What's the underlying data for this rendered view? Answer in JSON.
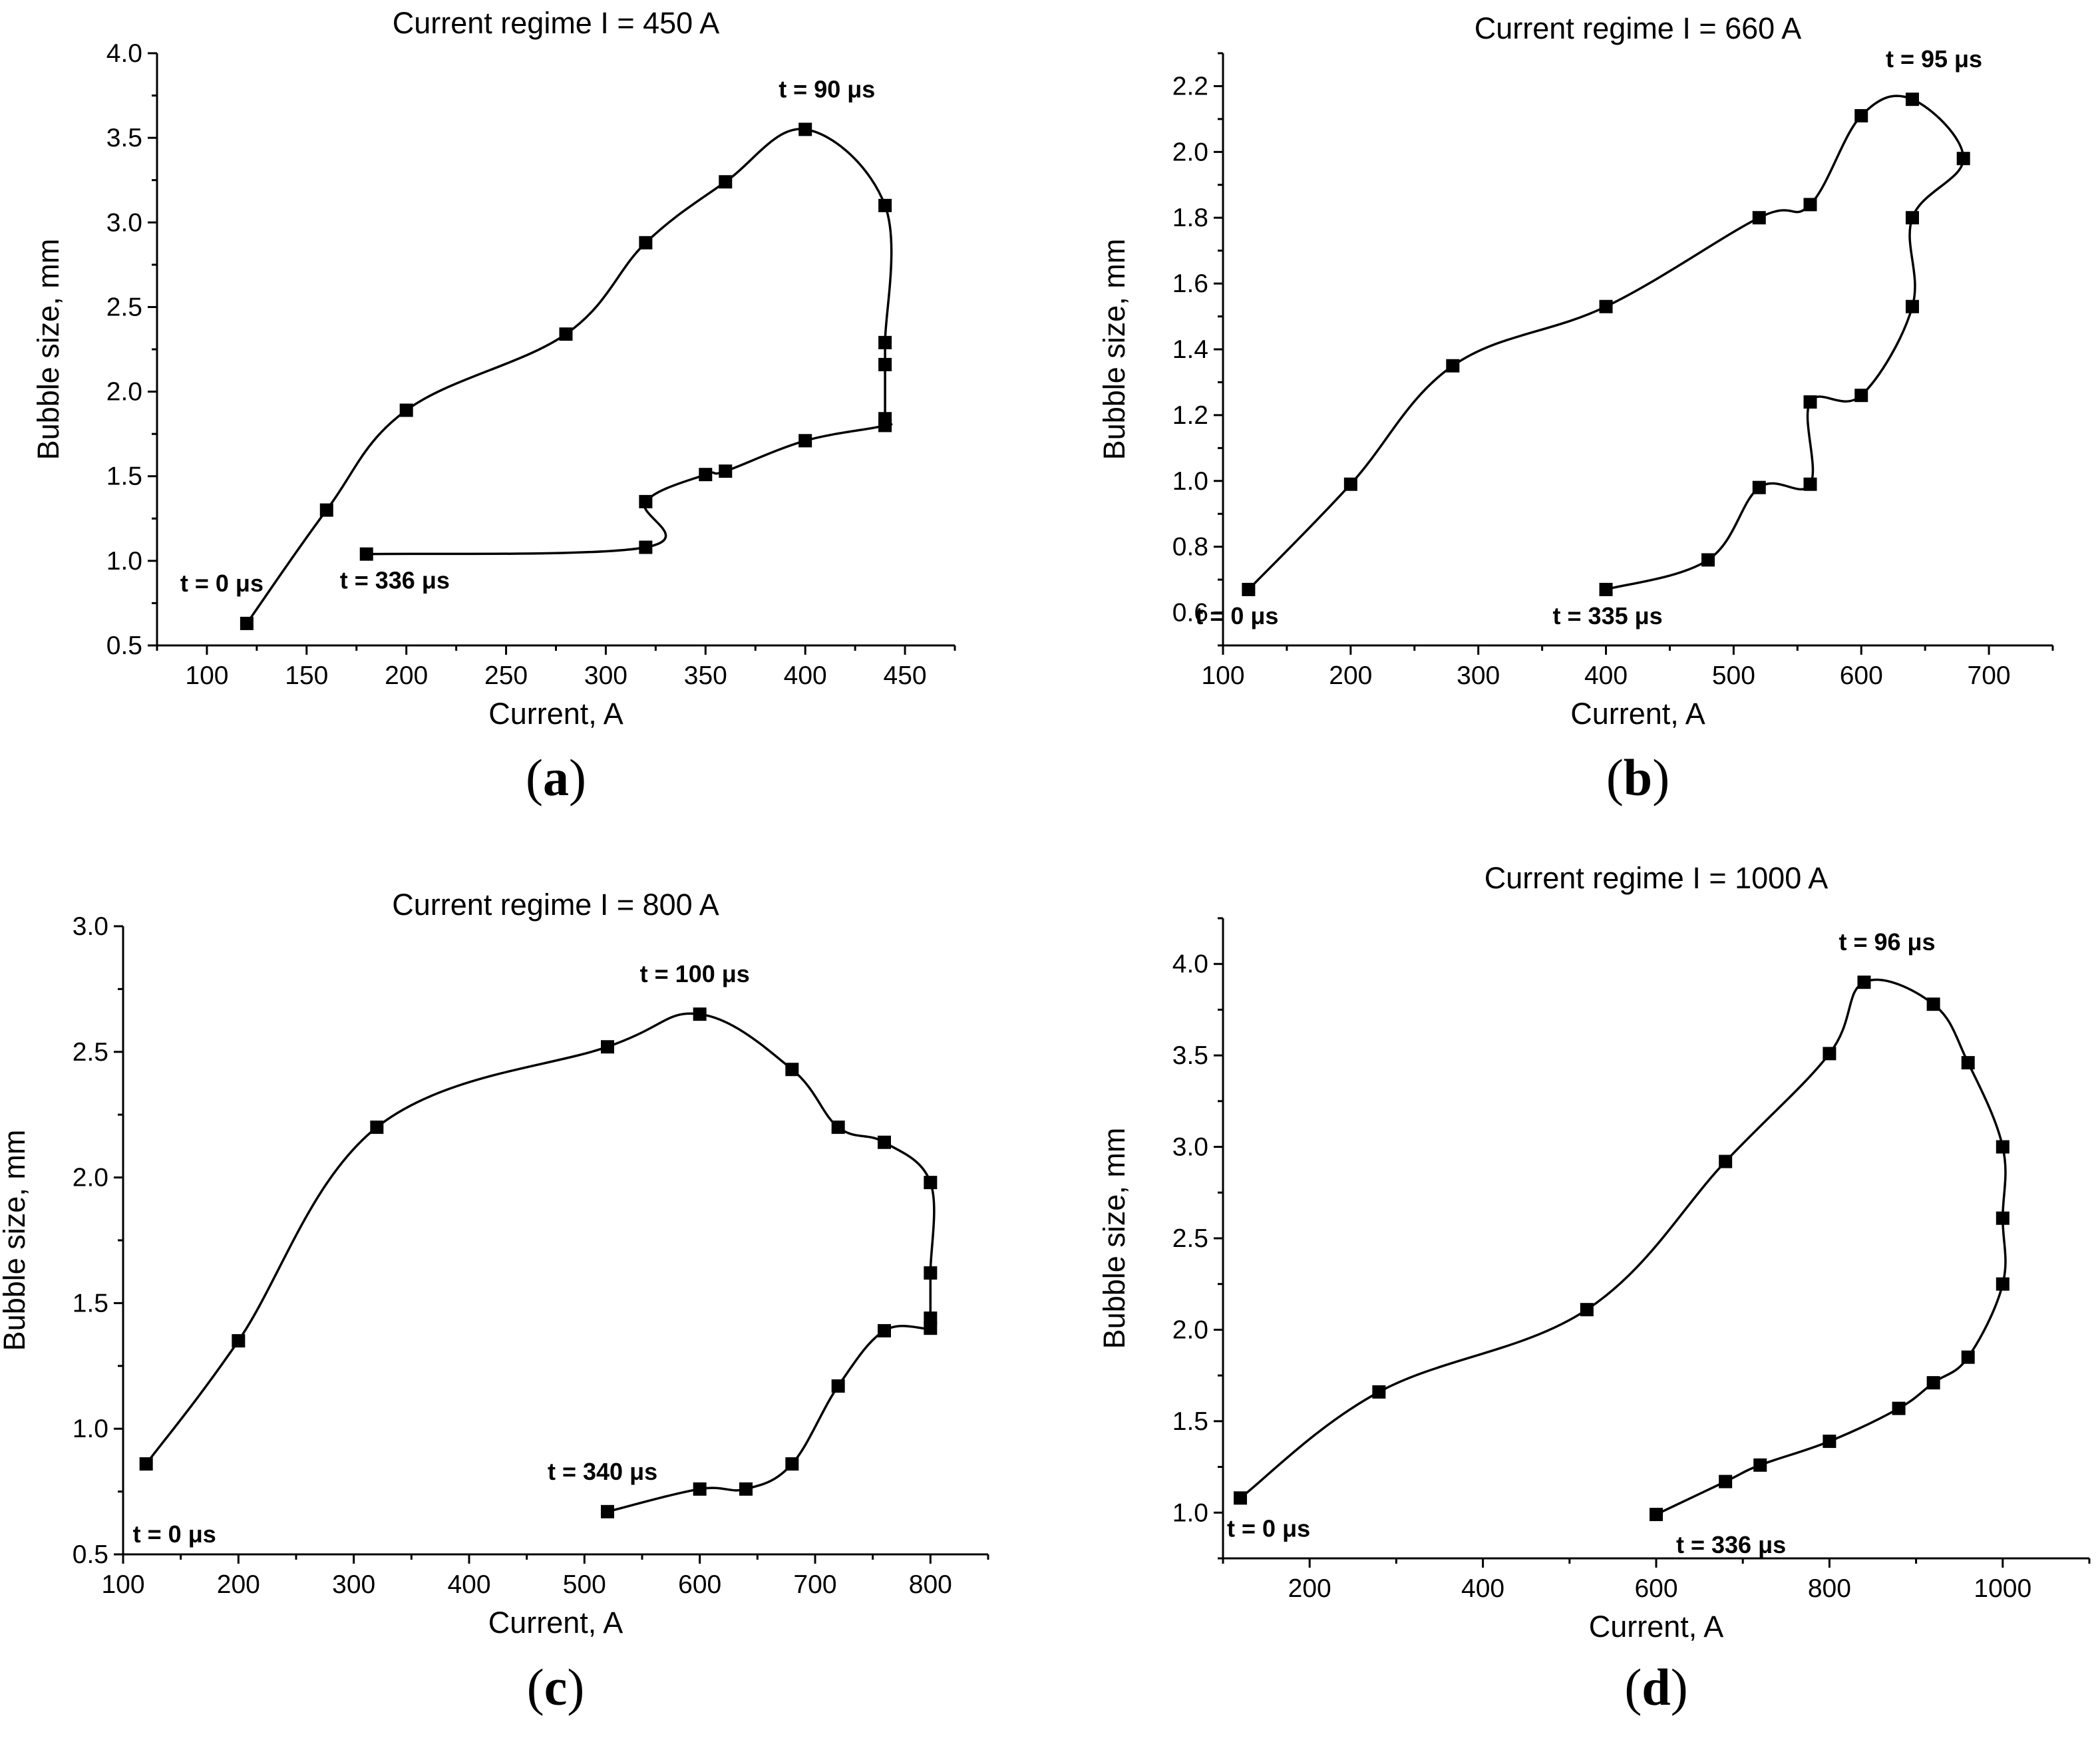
{
  "chart_data": [
    {
      "type": "line",
      "panel_label": "a",
      "title": "Current regime I = 450 A",
      "xlabel": "Current, A",
      "ylabel": "Bubble size, mm",
      "xlim": [
        75,
        475
      ],
      "ylim": [
        0.5,
        4.0
      ],
      "xticks": [
        100,
        150,
        200,
        250,
        300,
        350,
        400,
        450
      ],
      "yticks": [
        0.5,
        1.0,
        1.5,
        2.0,
        2.5,
        3.0,
        3.5,
        4.0
      ],
      "xtick_labels": [
        "100",
        "150",
        "200",
        "250",
        "300",
        "350",
        "400",
        "450"
      ],
      "ytick_labels": [
        "0.5",
        "1.0",
        "1.5",
        "2.0",
        "2.5",
        "3.0",
        "3.5",
        "4.0"
      ],
      "grid": false,
      "series": [
        {
          "name": "bubble size",
          "x": [
            120,
            160,
            200,
            280,
            320,
            360,
            400,
            440,
            440,
            440,
            440,
            440,
            400,
            360,
            350,
            320,
            320,
            180
          ],
          "y": [
            0.63,
            1.3,
            1.89,
            2.34,
            2.88,
            3.24,
            3.55,
            3.1,
            2.29,
            2.16,
            1.84,
            1.8,
            1.71,
            1.53,
            1.51,
            1.35,
            1.08,
            1.04
          ]
        }
      ],
      "annotations": [
        {
          "text": "t = 0 μs",
          "x": 120,
          "y": 0.63
        },
        {
          "text": "t = 90 μs",
          "x": 400,
          "y": 3.55
        },
        {
          "text": "t = 336 μs",
          "x": 180,
          "y": 1.04
        }
      ]
    },
    {
      "type": "line",
      "panel_label": "b",
      "title": "Current regime I = 660 A",
      "xlabel": "Current, A",
      "ylabel": "Bubble size, mm",
      "xlim": [
        100,
        750
      ],
      "ylim": [
        0.5,
        2.3
      ],
      "xticks": [
        100,
        200,
        300,
        400,
        500,
        600,
        700
      ],
      "yticks": [
        0.6,
        0.8,
        1.0,
        1.2,
        1.4,
        1.6,
        1.8,
        2.0,
        2.2
      ],
      "xtick_labels": [
        "100",
        "200",
        "300",
        "400",
        "500",
        "600",
        "700"
      ],
      "ytick_labels": [
        "0.6",
        "0.8",
        "1.0",
        "1.2",
        "1.4",
        "1.6",
        "1.8",
        "2.0",
        "2.2"
      ],
      "grid": false,
      "series": [
        {
          "name": "bubble size",
          "x": [
            120,
            200,
            280,
            400,
            520,
            560,
            600,
            640,
            680,
            640,
            640,
            600,
            560,
            560,
            520,
            480,
            400
          ],
          "y": [
            0.67,
            0.99,
            1.35,
            1.53,
            1.8,
            1.84,
            2.11,
            2.16,
            1.98,
            1.8,
            1.53,
            1.26,
            1.24,
            0.99,
            0.98,
            0.76,
            0.67
          ]
        }
      ],
      "annotations": [
        {
          "text": "t = 0 μs",
          "x": 120,
          "y": 0.67
        },
        {
          "text": "t = 95 μs",
          "x": 640,
          "y": 2.16
        },
        {
          "text": "t = 335 μs",
          "x": 400,
          "y": 0.67
        }
      ]
    },
    {
      "type": "line",
      "panel_label": "c",
      "title": "Current regime I = 800 A",
      "xlabel": "Current, A",
      "ylabel": "Bubble size, mm",
      "xlim": [
        100,
        850
      ],
      "ylim": [
        0.5,
        3.0
      ],
      "xticks": [
        100,
        200,
        300,
        400,
        500,
        600,
        700,
        800
      ],
      "yticks": [
        0.5,
        1.0,
        1.5,
        2.0,
        2.5,
        3.0
      ],
      "xtick_labels": [
        "100",
        "200",
        "300",
        "400",
        "500",
        "600",
        "700",
        "800"
      ],
      "ytick_labels": [
        "0.5",
        "1.0",
        "1.5",
        "2.0",
        "2.5",
        "3.0"
      ],
      "grid": false,
      "series": [
        {
          "name": "bubble size",
          "x": [
            120,
            200,
            320,
            520,
            600,
            680,
            720,
            760,
            800,
            800,
            800,
            800,
            760,
            720,
            680,
            640,
            600,
            520
          ],
          "y": [
            0.86,
            1.35,
            2.2,
            2.52,
            2.65,
            2.43,
            2.2,
            2.14,
            1.98,
            1.62,
            1.44,
            1.4,
            1.39,
            1.17,
            0.86,
            0.76,
            0.76,
            0.67
          ]
        }
      ],
      "annotations": [
        {
          "text": "t = 0 μs",
          "x": 120,
          "y": 0.86
        },
        {
          "text": "t = 100 μs",
          "x": 600,
          "y": 2.65
        },
        {
          "text": "t = 340 μs",
          "x": 520,
          "y": 0.67
        }
      ]
    },
    {
      "type": "line",
      "panel_label": "d",
      "title": "Current regime I = 1000 A",
      "xlabel": "Current, A",
      "ylabel": "Bubble size, mm",
      "xlim": [
        100,
        1100
      ],
      "ylim": [
        0.75,
        4.25
      ],
      "xticks": [
        200,
        400,
        600,
        800,
        1000
      ],
      "yticks": [
        1.0,
        1.5,
        2.0,
        2.5,
        3.0,
        3.5,
        4.0
      ],
      "xtick_labels": [
        "200",
        "400",
        "600",
        "800",
        "1000"
      ],
      "ytick_labels": [
        "1.0",
        "1.5",
        "2.0",
        "2.5",
        "3.0",
        "3.5",
        "4.0"
      ],
      "grid": false,
      "series": [
        {
          "name": "bubble size",
          "x": [
            120,
            280,
            520,
            680,
            800,
            840,
            920,
            960,
            1000,
            1000,
            1000,
            960,
            920,
            880,
            800,
            720,
            680,
            600
          ],
          "y": [
            1.08,
            1.66,
            2.11,
            2.92,
            3.51,
            3.9,
            3.78,
            3.46,
            3.0,
            2.61,
            2.25,
            1.85,
            1.71,
            1.57,
            1.39,
            1.26,
            1.17,
            0.99
          ]
        }
      ],
      "annotations": [
        {
          "text": "t = 0 μs",
          "x": 120,
          "y": 1.08
        },
        {
          "text": "t = 96 μs",
          "x": 840,
          "y": 3.9
        },
        {
          "text": "t = 336 μs",
          "x": 600,
          "y": 0.99
        }
      ]
    }
  ]
}
